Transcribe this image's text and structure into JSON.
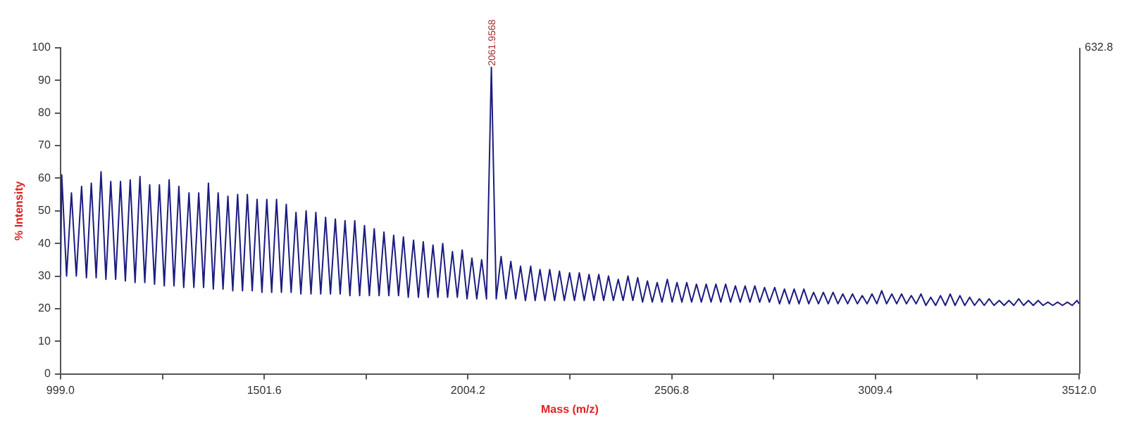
{
  "chart_data": {
    "type": "line",
    "xlabel": "Mass (m/z)",
    "ylabel": "% Intensity",
    "xlim": [
      999.0,
      3512.0
    ],
    "xticks": [
      {
        "value": 999.0,
        "label": "999.0"
      },
      {
        "value": 1250.3,
        "label": null
      },
      {
        "value": 1501.6,
        "label": "1501.6"
      },
      {
        "value": 1752.9,
        "label": null
      },
      {
        "value": 2004.2,
        "label": "2004.2"
      },
      {
        "value": 2255.5,
        "label": null
      },
      {
        "value": 2506.8,
        "label": "2506.8"
      },
      {
        "value": 2758.1,
        "label": null
      },
      {
        "value": 3009.4,
        "label": "3009.4"
      },
      {
        "value": 3260.7,
        "label": null
      },
      {
        "value": 3512.0,
        "label": "3512.0"
      }
    ],
    "ylim": [
      0,
      100
    ],
    "yticks": [
      0,
      10,
      20,
      30,
      40,
      50,
      60,
      70,
      80,
      90,
      100
    ],
    "grid": false,
    "marker": "none",
    "line_style": "solid",
    "annotations": [
      {
        "text": "2061.9568",
        "x": 2061.9568,
        "y": 94
      },
      "632.8"
    ],
    "series": [
      {
        "color": "#1c1c80",
        "x": [
          999,
          1002,
          1014,
          1026,
          1038,
          1051,
          1063,
          1075,
          1087,
          1099,
          1111,
          1123,
          1135,
          1147,
          1159,
          1171,
          1183,
          1195,
          1207,
          1219,
          1231,
          1243,
          1255,
          1267,
          1279,
          1291,
          1303,
          1316,
          1328,
          1340,
          1352,
          1364,
          1376,
          1388,
          1400,
          1412,
          1424,
          1436,
          1448,
          1460,
          1472,
          1484,
          1496,
          1508,
          1520,
          1532,
          1544,
          1556,
          1568,
          1580,
          1592,
          1605,
          1617,
          1629,
          1641,
          1653,
          1665,
          1677,
          1689,
          1701,
          1713,
          1725,
          1737,
          1749,
          1761,
          1773,
          1785,
          1797,
          1809,
          1821,
          1833,
          1845,
          1857,
          1870,
          1882,
          1894,
          1906,
          1918,
          1930,
          1942,
          1954,
          1966,
          1978,
          1990,
          2002,
          2014,
          2026,
          2038,
          2050,
          2062,
          2074,
          2086,
          2098,
          2110,
          2122,
          2134,
          2146,
          2159,
          2170,
          2182,
          2194,
          2206,
          2218,
          2230,
          2242,
          2255,
          2267,
          2279,
          2291,
          2303,
          2315,
          2327,
          2339,
          2351,
          2363,
          2375,
          2387,
          2399,
          2411,
          2423,
          2435,
          2447,
          2459,
          2471,
          2483,
          2496,
          2508,
          2520,
          2532,
          2544,
          2556,
          2568,
          2580,
          2592,
          2604,
          2616,
          2628,
          2640,
          2652,
          2664,
          2676,
          2688,
          2700,
          2712,
          2724,
          2736,
          2748,
          2761,
          2773,
          2785,
          2797,
          2809,
          2821,
          2833,
          2845,
          2857,
          2869,
          2881,
          2893,
          2905,
          2917,
          2929,
          2941,
          2953,
          2965,
          2977,
          2989,
          3001,
          3013,
          3025,
          3037,
          3050,
          3062,
          3074,
          3086,
          3098,
          3110,
          3122,
          3134,
          3146,
          3158,
          3170,
          3182,
          3194,
          3206,
          3218,
          3230,
          3242,
          3254,
          3266,
          3278,
          3290,
          3302,
          3315,
          3327,
          3339,
          3351,
          3363,
          3375,
          3387,
          3399,
          3411,
          3423,
          3435,
          3447,
          3459,
          3471,
          3483,
          3495,
          3507,
          3512
        ],
        "values": [
          30,
          61,
          30,
          55.5,
          30,
          57.5,
          29.5,
          58.5,
          29.5,
          62,
          29,
          59,
          29,
          59,
          28.5,
          59.5,
          28,
          60.5,
          28,
          58,
          27.5,
          58,
          27,
          59.5,
          27,
          57.5,
          26.5,
          55.5,
          26.5,
          55.5,
          26.5,
          58.5,
          26,
          55.5,
          26,
          54.5,
          25.5,
          55,
          25.5,
          55,
          25.5,
          53.5,
          25,
          53.5,
          25,
          53.5,
          25,
          52,
          25,
          49.5,
          24.5,
          50,
          24.5,
          49.5,
          24.5,
          48,
          24.5,
          47.5,
          24.5,
          47,
          24,
          47,
          24,
          45.5,
          24,
          44.5,
          24,
          43.5,
          24,
          42.5,
          24,
          42,
          23.5,
          41,
          23.5,
          40.5,
          23.5,
          39.5,
          23.5,
          40,
          23.5,
          37.5,
          23.5,
          38,
          23,
          35.5,
          23,
          35,
          23,
          94,
          23,
          36,
          23,
          34.5,
          23,
          33,
          22.5,
          33,
          22.5,
          32,
          22.5,
          32,
          22.5,
          31.5,
          22.5,
          31,
          22.5,
          31,
          22.5,
          30.5,
          22.5,
          30.5,
          22.5,
          30,
          22.5,
          29,
          22.5,
          30,
          22.5,
          29.5,
          22,
          28.5,
          22,
          28,
          22,
          29,
          22,
          28,
          22,
          28,
          22,
          27.5,
          22,
          27.5,
          22,
          27.5,
          22,
          27.5,
          22,
          27,
          22,
          27,
          22,
          27,
          22,
          26.5,
          22,
          26.5,
          21.5,
          26,
          21.5,
          26,
          21.5,
          26,
          21.5,
          25,
          21.5,
          25,
          21.5,
          25,
          21.5,
          24.5,
          21.5,
          24.5,
          21.5,
          24,
          21.5,
          24.5,
          21.5,
          25.5,
          21.5,
          24.5,
          21.5,
          24.5,
          21.5,
          24,
          21.5,
          24.5,
          21,
          23.5,
          21,
          24,
          21,
          24.5,
          21,
          24,
          21,
          23.5,
          21,
          23,
          21,
          23,
          21,
          22.5,
          21,
          22.5,
          21,
          23,
          21,
          22.5,
          21,
          22.5,
          21,
          22,
          21,
          22,
          21,
          22,
          21,
          22.5,
          21.5
        ]
      }
    ]
  }
}
